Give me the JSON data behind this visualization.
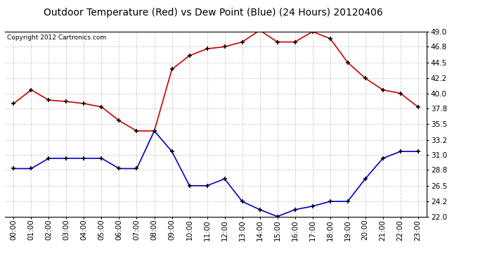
{
  "title": "Outdoor Temperature (Red) vs Dew Point (Blue) (24 Hours) 20120406",
  "copyright": "Copyright 2012 Cartronics.com",
  "x_labels": [
    "00:00",
    "01:00",
    "02:00",
    "03:00",
    "04:00",
    "05:00",
    "06:00",
    "07:00",
    "08:00",
    "09:00",
    "10:00",
    "11:00",
    "12:00",
    "13:00",
    "14:00",
    "15:00",
    "16:00",
    "17:00",
    "18:00",
    "19:00",
    "20:00",
    "21:00",
    "22:00",
    "23:00"
  ],
  "temp_red": [
    38.5,
    40.5,
    39.0,
    38.8,
    38.5,
    38.0,
    36.0,
    34.5,
    34.5,
    43.5,
    45.5,
    46.5,
    46.8,
    47.5,
    49.2,
    47.5,
    47.5,
    49.0,
    48.0,
    44.5,
    42.2,
    40.5,
    40.0,
    38.0
  ],
  "dew_blue": [
    29.0,
    29.0,
    30.5,
    30.5,
    30.5,
    30.5,
    29.0,
    29.0,
    34.5,
    31.5,
    26.5,
    26.5,
    27.5,
    24.2,
    23.0,
    22.0,
    23.0,
    23.5,
    24.2,
    24.2,
    27.5,
    30.5,
    31.5,
    31.5
  ],
  "ylim": [
    22.0,
    49.0
  ],
  "yticks": [
    22.0,
    24.2,
    26.5,
    28.8,
    31.0,
    33.2,
    35.5,
    37.8,
    40.0,
    42.2,
    44.5,
    46.8,
    49.0
  ],
  "temp_color": "#cc0000",
  "dew_color": "#0000cc",
  "bg_color": "#ffffff",
  "grid_color": "#cccccc",
  "title_fontsize": 10,
  "copyright_fontsize": 6.5,
  "axis_fontsize": 7.5
}
